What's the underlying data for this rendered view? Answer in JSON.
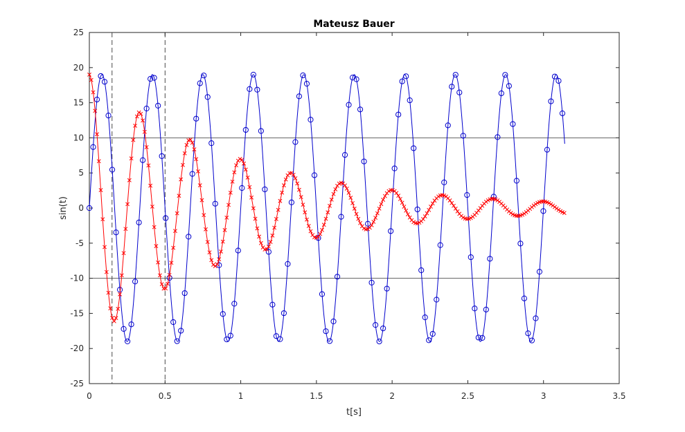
{
  "chart_data": {
    "type": "line",
    "title": "Mateusz Bauer",
    "xlabel": "t[s]",
    "ylabel": "sin(t)",
    "xlim": [
      0,
      3.5
    ],
    "ylim": [
      -25,
      25
    ],
    "xticks": [
      0,
      0.5,
      1,
      1.5,
      2,
      2.5,
      3,
      3.5
    ],
    "yticks": [
      -25,
      -20,
      -15,
      -10,
      -5,
      0,
      5,
      10,
      15,
      20,
      25
    ],
    "xtick_labels": [
      "0",
      "0.5",
      "1",
      "1.5",
      "2",
      "2.5",
      "3",
      "3.5"
    ],
    "ytick_labels": [
      "-25",
      "-20",
      "-15",
      "-10",
      "-5",
      "0",
      "5",
      "10",
      "15",
      "20",
      "25"
    ],
    "grid": false,
    "t_range": [
      0,
      3.14
    ],
    "series": [
      {
        "color": "#0000cc",
        "marker": "circle",
        "amplitude": 19,
        "frequency_hz": 3,
        "damping": 0,
        "phase": 0
      },
      {
        "color": "#ff0000",
        "marker": "x",
        "amplitude": 19,
        "frequency_hz": 3,
        "damping": 1.0,
        "phase": 1.5708
      }
    ],
    "reference_lines": {
      "horizontal": [
        10,
        -10
      ],
      "vertical_dashed": [
        0.15,
        0.5
      ]
    }
  }
}
